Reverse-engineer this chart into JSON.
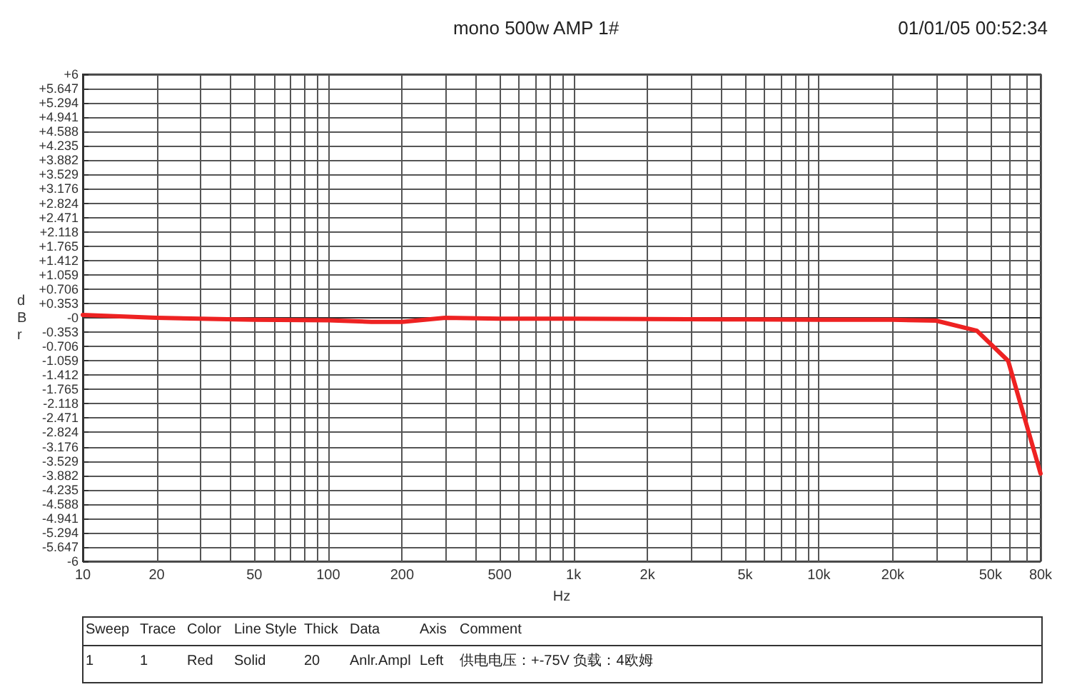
{
  "chart_data": {
    "type": "line",
    "title": "mono 500w AMP 1#",
    "subtitle": "01/01/05 00:52:34",
    "xlabel": "Hz",
    "ylabel": "dBr",
    "log": "x",
    "grid": true,
    "marker": "none",
    "line_style": "solid",
    "x": [
      10,
      20,
      30,
      50,
      100,
      150,
      200,
      300,
      500,
      1000,
      2000,
      5000,
      10000,
      20000,
      30000,
      44000,
      59000,
      80000
    ],
    "series": [
      {
        "color": "#ee2222",
        "values": [
          0.07,
          0.0,
          -0.02,
          -0.05,
          -0.06,
          -0.1,
          -0.1,
          0.0,
          -0.02,
          -0.02,
          -0.03,
          -0.04,
          -0.05,
          -0.05,
          -0.07,
          -0.32,
          -1.06,
          -3.84
        ]
      }
    ],
    "xlim": [
      10,
      80000
    ],
    "xticks": [
      10,
      20,
      {
        "value": 30,
        "label": null
      },
      {
        "value": 40,
        "label": null
      },
      50,
      {
        "value": 60,
        "label": null
      },
      {
        "value": 70,
        "label": null
      },
      {
        "value": 80,
        "label": null
      },
      {
        "value": 90,
        "label": null
      },
      100,
      200,
      {
        "value": 300,
        "label": null
      },
      {
        "value": 400,
        "label": null
      },
      500,
      {
        "value": 600,
        "label": null
      },
      {
        "value": 700,
        "label": null
      },
      {
        "value": 800,
        "label": null
      },
      {
        "value": 900,
        "label": null
      },
      {
        "value": 1000,
        "label": "1k"
      },
      {
        "value": 2000,
        "label": "2k"
      },
      {
        "value": 3000,
        "label": null
      },
      {
        "value": 4000,
        "label": null
      },
      {
        "value": 5000,
        "label": "5k"
      },
      {
        "value": 6000,
        "label": null
      },
      {
        "value": 7000,
        "label": null
      },
      {
        "value": 8000,
        "label": null
      },
      {
        "value": 9000,
        "label": null
      },
      {
        "value": 10000,
        "label": "10k"
      },
      {
        "value": 20000,
        "label": "20k"
      },
      {
        "value": 30000,
        "label": null
      },
      {
        "value": 40000,
        "label": null
      },
      {
        "value": 50000,
        "label": "50k"
      },
      {
        "value": 60000,
        "label": null
      },
      {
        "value": 70000,
        "label": null
      },
      {
        "value": 80000,
        "label": "80k"
      }
    ],
    "ylim": [
      -6,
      6
    ],
    "yticks": [
      {
        "value": 6,
        "label": "+6"
      },
      {
        "value": 5.647,
        "label": "+5.647"
      },
      {
        "value": 5.294,
        "label": "+5.294"
      },
      {
        "value": 4.941,
        "label": "+4.941"
      },
      {
        "value": 4.588,
        "label": "+4.588"
      },
      {
        "value": 4.235,
        "label": "+4.235"
      },
      {
        "value": 3.882,
        "label": "+3.882"
      },
      {
        "value": 3.529,
        "label": "+3.529"
      },
      {
        "value": 3.176,
        "label": "+3.176"
      },
      {
        "value": 2.824,
        "label": "+2.824"
      },
      {
        "value": 2.471,
        "label": "+2.471"
      },
      {
        "value": 2.118,
        "label": "+2.118"
      },
      {
        "value": 1.765,
        "label": "+1.765"
      },
      {
        "value": 1.412,
        "label": "+1.412"
      },
      {
        "value": 1.059,
        "label": "+1.059"
      },
      {
        "value": 0.706,
        "label": "+0.706"
      },
      {
        "value": 0.353,
        "label": "+0.353"
      },
      {
        "value": 0,
        "label": "-0"
      },
      -0.353,
      -0.706,
      -1.059,
      -1.412,
      -1.765,
      -2.118,
      -2.471,
      -2.824,
      -3.176,
      -3.529,
      -3.882,
      -4.235,
      -4.588,
      -4.941,
      -5.294,
      -5.647,
      -6
    ],
    "annotations": [
      "Sweep",
      "Trace",
      "Color",
      "Line Style",
      "Thick",
      "Data",
      "Axis",
      "Comment",
      "1",
      "1",
      "Red",
      "Solid",
      "20",
      "Anlr.Ampl",
      "Left",
      "供电电压：+-75V 负载：4欧姆"
    ]
  }
}
